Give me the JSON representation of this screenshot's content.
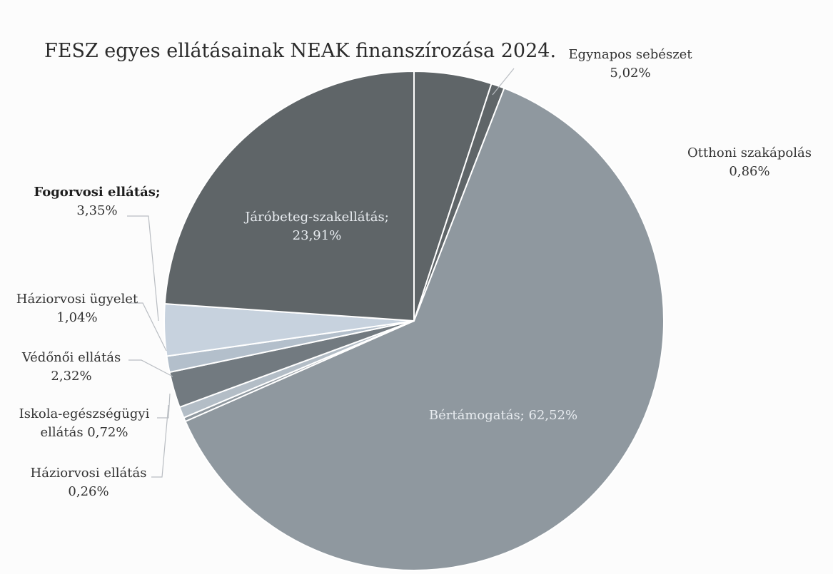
{
  "chart_data": {
    "type": "pie",
    "title": "FESZ egyes ellátásainak NEAK finanszírozása 2024.",
    "slices": [
      {
        "name": "Egynapos sebészet",
        "value": 5.02,
        "color": "#5f6568",
        "label_lines": [
          "Egynapos sebészet",
          "5,02%"
        ],
        "label_pos": "outside"
      },
      {
        "name": "Otthoni szakápolás",
        "value": 0.86,
        "color": "#5f6568",
        "label_lines": [
          "Otthoni szakápolás",
          "0,86%"
        ],
        "label_pos": "outside"
      },
      {
        "name": "Bértámogatás",
        "value": 62.52,
        "color": "#8f989f",
        "label_lines": [
          "Bértámogatás; 62,52%"
        ],
        "label_pos": "inside"
      },
      {
        "name": "Háziorvosi ellátás",
        "value": 0.26,
        "color": "#8f989f",
        "label_lines": [
          "Háziorvosi ellátás",
          "0,26%"
        ],
        "label_pos": "outside"
      },
      {
        "name": "Iskola-egészségügyi ellátás",
        "value": 0.72,
        "color": "#b3bdc6",
        "label_lines": [
          "Iskola-egészségügyi",
          "ellátás 0,72%"
        ],
        "label_pos": "outside"
      },
      {
        "name": "Védőnői ellátás",
        "value": 2.32,
        "color": "#727a80",
        "label_lines": [
          "Védőnői ellátás",
          "2,32%"
        ],
        "label_pos": "outside"
      },
      {
        "name": "Háziorvosi ügyelet",
        "value": 1.04,
        "color": "#b3bfcb",
        "label_lines": [
          "Háziorvosi ügyelet",
          "1,04%"
        ],
        "label_pos": "outside"
      },
      {
        "name": "Fogorvosi ellátás",
        "value": 3.35,
        "color": "#c7d2de",
        "label_lines": [
          "Fogorvosi ellátás;",
          "3,35%"
        ],
        "label_pos": "outside",
        "bold_first_line": true
      },
      {
        "name": "Járóbeteg-szakellátás",
        "value": 23.91,
        "color": "#5f6568",
        "label_lines": [
          "Járóbeteg-szakellátás;",
          "23,91%"
        ],
        "label_pos": "inside"
      }
    ],
    "legend": "none",
    "start": "12 o'clock",
    "direction": "clockwise"
  }
}
